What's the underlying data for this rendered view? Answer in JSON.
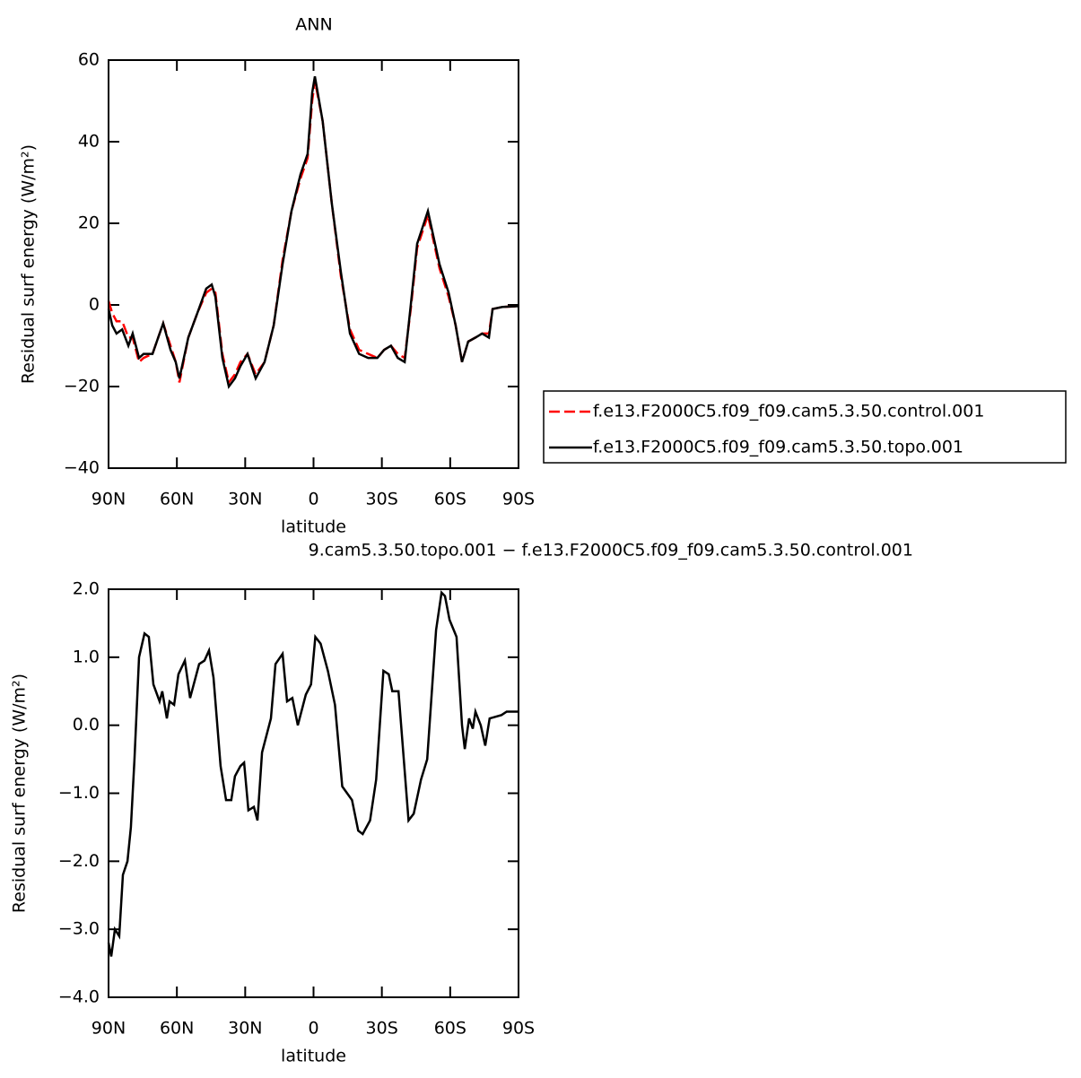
{
  "chart_data": [
    {
      "type": "line",
      "title": "ANN",
      "x_label": "latitude",
      "y_label": "Residual surf energy (W/m²)",
      "x": [
        90,
        88.4,
        86.5,
        84,
        81.3,
        79.4,
        76.6,
        74.6,
        70.7,
        67.6,
        66,
        62.8,
        60.5,
        58.9,
        55,
        51,
        47.1,
        44.7,
        43.1,
        40,
        37.2,
        34.5,
        32.1,
        29,
        25.4,
        21.5,
        17.5,
        13.6,
        9.7,
        5.7,
        2.6,
        0.6,
        -0.6,
        -4,
        -8,
        -12,
        -16,
        -20,
        -24,
        -28,
        -31,
        -34,
        -37,
        -40,
        -42.7,
        -45.5,
        -50.2,
        -55.3,
        -59.3,
        -62.4,
        -65.2,
        -67.9,
        -71.1,
        -74,
        -77,
        -78.6,
        -82.9,
        -90
      ],
      "series": [
        {
          "name": "f.e13.F2000C5.f09_f09.cam5.3.50.control.001",
          "color": "#ff0000",
          "linestyle": "dashed",
          "values": [
            1,
            -2,
            -4,
            -4,
            -8,
            -8,
            -14,
            -13,
            -12,
            -7,
            -4.5,
            -10,
            -14,
            -19,
            -8,
            -2,
            3,
            4,
            3,
            -12,
            -19,
            -17,
            -14,
            -12,
            -17,
            -14,
            -5,
            11,
            23,
            31,
            36,
            50,
            55,
            45,
            25,
            7,
            -6,
            -11,
            -12,
            -13,
            -11,
            -10,
            -12,
            -13,
            -1,
            14,
            22,
            9,
            2,
            -5,
            -14,
            -9,
            -8,
            -7,
            -7,
            -1,
            -0.5,
            -0.3
          ]
        },
        {
          "name": "f.e13.F2000C5.f09_f09.cam5.3.50.topo.001",
          "color": "#000000",
          "linestyle": "solid",
          "values": [
            -1,
            -5,
            -7,
            -6,
            -10,
            -7,
            -13,
            -12,
            -12,
            -7,
            -4.5,
            -11,
            -14,
            -18,
            -8,
            -2,
            4,
            5,
            2,
            -13,
            -20,
            -18,
            -15,
            -12,
            -18,
            -14,
            -5,
            10,
            23,
            32,
            37,
            52,
            56,
            45,
            25,
            8,
            -7,
            -12,
            -13,
            -13,
            -11,
            -10,
            -13,
            -14,
            0,
            15,
            23,
            10,
            3,
            -5,
            -14,
            -9,
            -8,
            -7,
            -8,
            -1,
            -0.5,
            -0.3
          ]
        }
      ],
      "xlim": [
        90,
        -90
      ],
      "xticks": [
        {
          "value": 90,
          "label": "90N"
        },
        {
          "value": 60,
          "label": "60N"
        },
        {
          "value": 30,
          "label": "30N"
        },
        0,
        {
          "value": -30,
          "label": "30S"
        },
        {
          "value": -60,
          "label": "60S"
        },
        {
          "value": -90,
          "label": "90S"
        }
      ],
      "ylim": [
        -40,
        60
      ],
      "yticks": [
        {
          "value": -40,
          "label": "−40"
        },
        {
          "value": -20,
          "label": "−20"
        },
        0,
        20,
        40,
        60
      ],
      "legend": "right"
    },
    {
      "type": "line",
      "title": "9.cam5.3.50.topo.001 − f.e13.F2000C5.f09_f09.cam5.3.50.control.001",
      "x_label": "latitude",
      "y_label": "Residual surf energy (W/m²)",
      "x": [
        90,
        88.8,
        87.2,
        85.3,
        83.7,
        81.7,
        80.2,
        78.6,
        76.6,
        74.2,
        72.3,
        70.3,
        67.6,
        66.4,
        64.4,
        63.2,
        61.2,
        59.3,
        56.5,
        54.2,
        50.2,
        47.9,
        45.9,
        43.9,
        40.8,
        38.4,
        36.1,
        34.5,
        32.1,
        30.5,
        28.6,
        26.2,
        24.6,
        22.6,
        18.7,
        16.7,
        13.6,
        11.6,
        9.3,
        6.9,
        3.4,
        1.1,
        -0.8,
        -3.1,
        -6.3,
        -9.4,
        -12.6,
        -16.9,
        -19.6,
        -21.6,
        -24.8,
        -27.5,
        -30.7,
        -33,
        -34.6,
        -37.3,
        -41.7,
        -44,
        -47.2,
        -49.9,
        -53.8,
        -56.2,
        -57.7,
        -59.7,
        -62.8,
        -65.2,
        -66.4,
        -68.3,
        -69.9,
        -71.1,
        -73.4,
        -75.4,
        -77.3,
        -82.5,
        -84.8,
        -90
      ],
      "series": [
        {
          "color": "#000000",
          "linestyle": "solid",
          "values": [
            -3.2,
            -3.4,
            -3.0,
            -3.1,
            -2.2,
            -2.0,
            -1.5,
            -0.5,
            1.0,
            1.35,
            1.3,
            0.6,
            0.35,
            0.5,
            0.1,
            0.35,
            0.3,
            0.75,
            0.95,
            0.4,
            0.9,
            0.95,
            1.1,
            0.7,
            -0.6,
            -1.1,
            -1.1,
            -0.75,
            -0.6,
            -0.55,
            -1.25,
            -1.2,
            -1.4,
            -0.4,
            0.1,
            0.9,
            1.05,
            0.35,
            0.4,
            0.0,
            0.45,
            0.6,
            1.3,
            1.2,
            0.8,
            0.3,
            -0.9,
            -1.1,
            -1.55,
            -1.6,
            -1.4,
            -0.8,
            0.8,
            0.75,
            0.5,
            0.5,
            -1.4,
            -1.3,
            -0.8,
            -0.5,
            1.4,
            1.95,
            1.9,
            1.55,
            1.3,
            0.0,
            -0.35,
            0.1,
            -0.05,
            0.2,
            0.0,
            -0.3,
            0.1,
            0.15,
            0.2,
            0.2
          ]
        }
      ],
      "xlim": [
        90,
        -90
      ],
      "xticks": [
        {
          "value": 90,
          "label": "90N"
        },
        {
          "value": 60,
          "label": "60N"
        },
        {
          "value": 30,
          "label": "30N"
        },
        0,
        {
          "value": -30,
          "label": "30S"
        },
        {
          "value": -60,
          "label": "60S"
        },
        {
          "value": -90,
          "label": "90S"
        }
      ],
      "ylim": [
        -4,
        2
      ],
      "yticks": [
        {
          "value": -4,
          "label": "−4.0"
        },
        {
          "value": -3,
          "label": "−3.0"
        },
        {
          "value": -2,
          "label": "−2.0"
        },
        {
          "value": -1,
          "label": "−1.0"
        },
        {
          "value": 0,
          "label": "0.0"
        },
        {
          "value": 1,
          "label": "1.0"
        },
        {
          "value": 2,
          "label": "2.0"
        }
      ]
    }
  ]
}
